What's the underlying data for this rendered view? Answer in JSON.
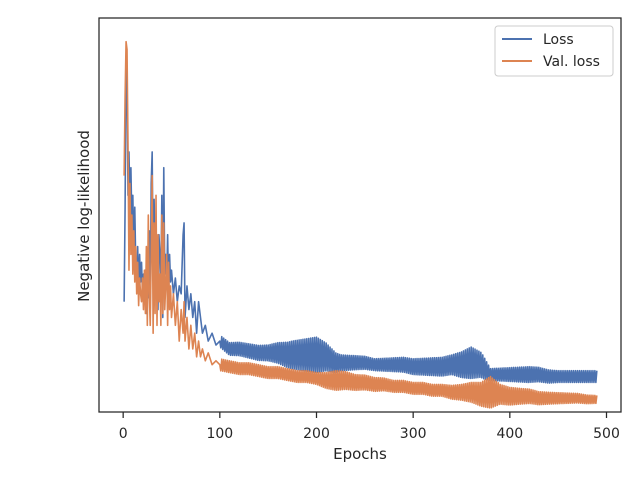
{
  "chart_data": {
    "type": "line",
    "title": "",
    "xlabel": "Epochs",
    "ylabel": "Negative log-likelihood",
    "xlim": [
      -25,
      515
    ],
    "ylim": [
      0,
      100
    ],
    "xticks": [
      0,
      100,
      200,
      300,
      400,
      500
    ],
    "yticks": [],
    "grid": false,
    "legend_position": "top-right",
    "series": [
      {
        "name": "Loss",
        "color": "#4c72b0",
        "points": [
          [
            1,
            28
          ],
          [
            2,
            52
          ],
          [
            3,
            90
          ],
          [
            4,
            84
          ],
          [
            5,
            55
          ],
          [
            6,
            66
          ],
          [
            7,
            52
          ],
          [
            8,
            62
          ],
          [
            9,
            48
          ],
          [
            10,
            55
          ],
          [
            11,
            40
          ],
          [
            12,
            52
          ],
          [
            13,
            38
          ],
          [
            14,
            34
          ],
          [
            15,
            42
          ],
          [
            16,
            30
          ],
          [
            17,
            40
          ],
          [
            18,
            33
          ],
          [
            19,
            38
          ],
          [
            20,
            30
          ],
          [
            21,
            35
          ],
          [
            22,
            28
          ],
          [
            23,
            36
          ],
          [
            24,
            25
          ],
          [
            25,
            33
          ],
          [
            26,
            29
          ],
          [
            27,
            46
          ],
          [
            28,
            26
          ],
          [
            29,
            58
          ],
          [
            30,
            66
          ],
          [
            31,
            35
          ],
          [
            32,
            54
          ],
          [
            33,
            40
          ],
          [
            34,
            30
          ],
          [
            35,
            37
          ],
          [
            36,
            26
          ],
          [
            37,
            45
          ],
          [
            38,
            40
          ],
          [
            39,
            32
          ],
          [
            40,
            55
          ],
          [
            41,
            24
          ],
          [
            42,
            62
          ],
          [
            43,
            35
          ],
          [
            44,
            40
          ],
          [
            45,
            32
          ],
          [
            46,
            45
          ],
          [
            47,
            30
          ],
          [
            48,
            40
          ],
          [
            49,
            33
          ],
          [
            50,
            36
          ],
          [
            52,
            30
          ],
          [
            54,
            34
          ],
          [
            56,
            28
          ],
          [
            58,
            32
          ],
          [
            60,
            30
          ],
          [
            62,
            45
          ],
          [
            63,
            48
          ],
          [
            64,
            24
          ],
          [
            66,
            32
          ],
          [
            68,
            26
          ],
          [
            70,
            30
          ],
          [
            72,
            24
          ],
          [
            74,
            28
          ],
          [
            76,
            20
          ],
          [
            78,
            28
          ],
          [
            80,
            24
          ],
          [
            82,
            20
          ],
          [
            85,
            22
          ],
          [
            88,
            18
          ],
          [
            92,
            20
          ],
          [
            96,
            17
          ],
          [
            100,
            18
          ],
          [
            110,
            16
          ],
          [
            120,
            16
          ],
          [
            130,
            15.5
          ],
          [
            140,
            15
          ],
          [
            150,
            15
          ],
          [
            160,
            15
          ],
          [
            170,
            14.5
          ],
          [
            180,
            14.5
          ],
          [
            190,
            14.5
          ],
          [
            200,
            14.5
          ],
          [
            210,
            14
          ],
          [
            220,
            12.5
          ],
          [
            230,
            12.5
          ],
          [
            240,
            12.5
          ],
          [
            250,
            12.5
          ],
          [
            260,
            12
          ],
          [
            270,
            12
          ],
          [
            280,
            12
          ],
          [
            290,
            12
          ],
          [
            300,
            11.5
          ],
          [
            310,
            11.5
          ],
          [
            320,
            11.5
          ],
          [
            330,
            11.5
          ],
          [
            340,
            12
          ],
          [
            350,
            12
          ],
          [
            360,
            12.5
          ],
          [
            370,
            12
          ],
          [
            380,
            9.5
          ],
          [
            390,
            9.5
          ],
          [
            400,
            9.5
          ],
          [
            410,
            9.5
          ],
          [
            420,
            9.5
          ],
          [
            430,
            9.5
          ],
          [
            440,
            9
          ],
          [
            450,
            9
          ],
          [
            460,
            9
          ],
          [
            470,
            9
          ],
          [
            480,
            9
          ],
          [
            490,
            9
          ]
        ],
        "oscillation": [
          [
            100,
            1.5
          ],
          [
            150,
            2.0
          ],
          [
            175,
            3.5
          ],
          [
            200,
            4.5
          ],
          [
            215,
            3.0
          ],
          [
            225,
            2.0
          ],
          [
            260,
            1.5
          ],
          [
            300,
            2.0
          ],
          [
            340,
            2.5
          ],
          [
            360,
            4.0
          ],
          [
            372,
            3.0
          ],
          [
            380,
            1.5
          ],
          [
            420,
            2.0
          ],
          [
            450,
            1.5
          ],
          [
            490,
            1.5
          ]
        ]
      },
      {
        "name": "Val. loss",
        "color": "#dd8452",
        "points": [
          [
            1,
            60
          ],
          [
            2,
            80
          ],
          [
            3,
            94
          ],
          [
            4,
            92
          ],
          [
            5,
            68
          ],
          [
            6,
            36
          ],
          [
            7,
            58
          ],
          [
            8,
            40
          ],
          [
            9,
            50
          ],
          [
            10,
            35
          ],
          [
            11,
            46
          ],
          [
            12,
            33
          ],
          [
            13,
            42
          ],
          [
            14,
            30
          ],
          [
            15,
            38
          ],
          [
            16,
            27
          ],
          [
            17,
            34
          ],
          [
            18,
            30
          ],
          [
            19,
            28
          ],
          [
            20,
            34
          ],
          [
            21,
            26
          ],
          [
            22,
            36
          ],
          [
            23,
            25
          ],
          [
            24,
            42
          ],
          [
            25,
            22
          ],
          [
            26,
            50
          ],
          [
            27,
            30
          ],
          [
            28,
            22
          ],
          [
            29,
            40
          ],
          [
            30,
            60
          ],
          [
            31,
            20
          ],
          [
            32,
            48
          ],
          [
            33,
            25
          ],
          [
            34,
            55
          ],
          [
            35,
            22
          ],
          [
            36,
            45
          ],
          [
            37,
            28
          ],
          [
            38,
            35
          ],
          [
            39,
            22
          ],
          [
            40,
            50
          ],
          [
            41,
            25
          ],
          [
            42,
            48
          ],
          [
            43,
            26
          ],
          [
            44,
            32
          ],
          [
            45,
            40
          ],
          [
            46,
            22
          ],
          [
            47,
            38
          ],
          [
            48,
            26
          ],
          [
            49,
            32
          ],
          [
            50,
            24
          ],
          [
            52,
            30
          ],
          [
            54,
            22
          ],
          [
            56,
            28
          ],
          [
            58,
            18
          ],
          [
            60,
            26
          ],
          [
            62,
            20
          ],
          [
            63,
            28
          ],
          [
            64,
            18
          ],
          [
            66,
            24
          ],
          [
            68,
            16
          ],
          [
            70,
            22
          ],
          [
            72,
            16
          ],
          [
            74,
            20
          ],
          [
            76,
            14
          ],
          [
            78,
            18
          ],
          [
            80,
            14
          ],
          [
            82,
            16
          ],
          [
            85,
            13
          ],
          [
            88,
            15
          ],
          [
            92,
            12
          ],
          [
            96,
            13
          ],
          [
            100,
            12
          ],
          [
            110,
            11.5
          ],
          [
            120,
            11
          ],
          [
            130,
            11
          ],
          [
            140,
            10.5
          ],
          [
            150,
            10
          ],
          [
            160,
            10
          ],
          [
            170,
            9.5
          ],
          [
            180,
            9
          ],
          [
            190,
            9
          ],
          [
            200,
            8.5
          ],
          [
            210,
            8
          ],
          [
            220,
            8
          ],
          [
            230,
            8
          ],
          [
            240,
            7.5
          ],
          [
            250,
            7.5
          ],
          [
            260,
            7
          ],
          [
            270,
            7
          ],
          [
            280,
            6.5
          ],
          [
            290,
            6.5
          ],
          [
            300,
            6
          ],
          [
            310,
            6
          ],
          [
            320,
            5.5
          ],
          [
            330,
            5.5
          ],
          [
            340,
            5
          ],
          [
            350,
            5
          ],
          [
            360,
            5
          ],
          [
            370,
            4.5
          ],
          [
            380,
            5
          ],
          [
            390,
            4.5
          ],
          [
            400,
            4
          ],
          [
            410,
            4
          ],
          [
            420,
            4
          ],
          [
            430,
            3.5
          ],
          [
            440,
            3.5
          ],
          [
            450,
            3.5
          ],
          [
            460,
            3.5
          ],
          [
            470,
            3.5
          ],
          [
            480,
            3.2
          ],
          [
            490,
            3.2
          ]
        ],
        "oscillation": [
          [
            100,
            1.5
          ],
          [
            150,
            1.5
          ],
          [
            200,
            1.5
          ],
          [
            220,
            2.5
          ],
          [
            240,
            2.0
          ],
          [
            280,
            1.5
          ],
          [
            330,
            1.5
          ],
          [
            350,
            2.0
          ],
          [
            370,
            3.0
          ],
          [
            380,
            4.0
          ],
          [
            390,
            2.5
          ],
          [
            410,
            2.0
          ],
          [
            440,
            1.5
          ],
          [
            490,
            1.0
          ]
        ]
      }
    ]
  }
}
